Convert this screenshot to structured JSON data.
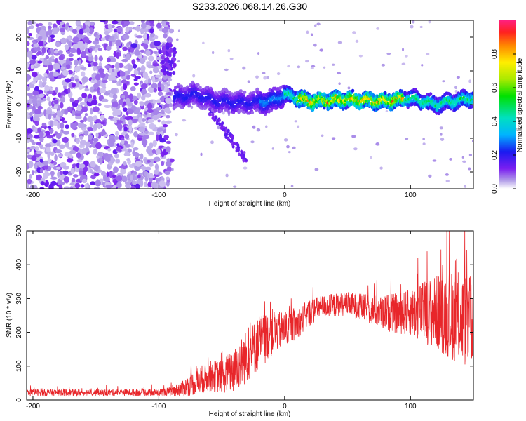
{
  "title": "S233.2026.068.14.26.G30",
  "chart_data": [
    {
      "type": "heatmap",
      "xlabel": "Height of straight line (km)",
      "ylabel": "Frequency (Hz)",
      "xlim": [
        -205,
        150
      ],
      "ylim": [
        -25,
        25
      ],
      "x_ticks": [
        -200,
        -100,
        0,
        100
      ],
      "y_ticks": [
        -20,
        -10,
        0,
        10,
        20
      ],
      "colorbar": {
        "label": "Normalized spectral amplitude",
        "range": [
          0,
          1
        ],
        "ticks": [
          "0.0",
          "0.2",
          "0.4",
          "0.6",
          "0.8"
        ]
      },
      "ridge": {
        "description_points": [
          [
            -88,
            2
          ],
          [
            -70,
            3
          ],
          [
            -55,
            1
          ],
          [
            -35,
            0.5
          ],
          [
            -10,
            1
          ],
          [
            0,
            3
          ],
          [
            20,
            1
          ],
          [
            50,
            1.5
          ],
          [
            80,
            1
          ],
          [
            100,
            2
          ],
          [
            120,
            0
          ],
          [
            150,
            2
          ]
        ],
        "peak_amplitude_region": [
          10,
          90
        ]
      }
    },
    {
      "type": "line",
      "xlabel": "Height of straight line (km)",
      "ylabel": "SNR (10 * v/v)",
      "xlim": [
        -205,
        150
      ],
      "ylim": [
        0,
        500
      ],
      "x_ticks": [
        -200,
        -100,
        0,
        100
      ],
      "y_ticks": [
        0,
        100,
        200,
        300,
        400,
        500
      ],
      "series": [
        {
          "name": "SNR",
          "color": "#e8262a",
          "envelope_x": [
            -205,
            -100,
            -90,
            -80,
            -70,
            -60,
            -50,
            -40,
            -30,
            -20,
            -10,
            0,
            10,
            20,
            30,
            40,
            50,
            60,
            70,
            80,
            90,
            100,
            110,
            120,
            130,
            140,
            150
          ],
          "envelope_mean": [
            22,
            22,
            25,
            35,
            55,
            70,
            70,
            90,
            130,
            170,
            200,
            210,
            225,
            260,
            275,
            280,
            285,
            275,
            265,
            260,
            255,
            260,
            260,
            260,
            255,
            240,
            230
          ],
          "envelope_spread": [
            10,
            10,
            14,
            25,
            40,
            45,
            50,
            70,
            80,
            80,
            70,
            50,
            45,
            40,
            35,
            35,
            35,
            40,
            45,
            55,
            60,
            70,
            90,
            110,
            130,
            140,
            140
          ]
        }
      ]
    }
  ]
}
